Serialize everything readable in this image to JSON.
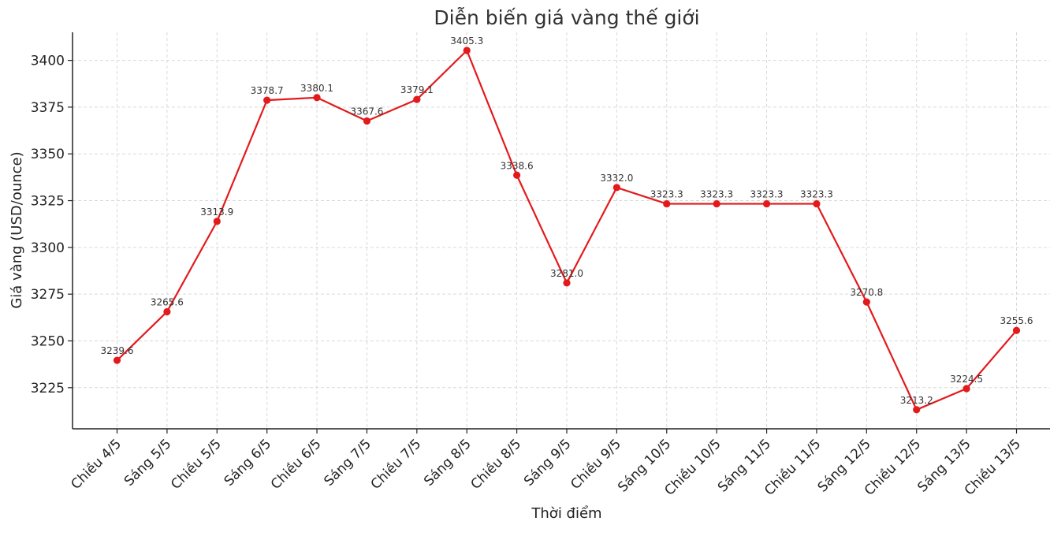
{
  "chart_data": {
    "type": "line",
    "title": "Diễn biến giá vàng thế giới",
    "xlabel": "Thời điểm",
    "ylabel": "Giá vàng (USD/ounce)",
    "categories": [
      "Chiều 4/5",
      "Sáng 5/5",
      "Chiều 5/5",
      "Sáng 6/5",
      "Chiều 6/5",
      "Sáng 7/5",
      "Chiều 7/5",
      "Sáng 8/5",
      "Chiều 8/5",
      "Sáng 9/5",
      "Chiều 9/5",
      "Sáng 10/5",
      "Chiều 10/5",
      "Sáng 11/5",
      "Chiều 11/5",
      "Sáng 12/5",
      "Chiều 12/5",
      "Sáng 13/5",
      "Chiều 13/5"
    ],
    "series": [
      {
        "values": [
          3239.6,
          3265.6,
          3313.9,
          3378.7,
          3380.1,
          3367.6,
          3379.1,
          3405.3,
          3338.6,
          3281.0,
          3332.0,
          3323.3,
          3323.3,
          3323.3,
          3323.3,
          3270.8,
          3213.2,
          3224.5,
          3255.6
        ],
        "color": "#e31a1c"
      }
    ],
    "data_labels": [
      "3239.6",
      "3265.6",
      "3313.9",
      "3378.7",
      "3380.1",
      "3367.6",
      "3379.1",
      "3405.3",
      "3338.6",
      "3281.0",
      "3332.0",
      "3323.3",
      "3323.3",
      "3323.3",
      "3323.3",
      "3270.8",
      "3213.2",
      "3224.5",
      "3255.6"
    ],
    "yticks": [
      3225,
      3250,
      3275,
      3300,
      3325,
      3350,
      3375,
      3400
    ],
    "ytick_labels": [
      "3225",
      "3250",
      "3275",
      "3300",
      "3325",
      "3350",
      "3375",
      "3400"
    ],
    "ylim": [
      3203,
      3415
    ],
    "grid": true,
    "legend": "none"
  }
}
